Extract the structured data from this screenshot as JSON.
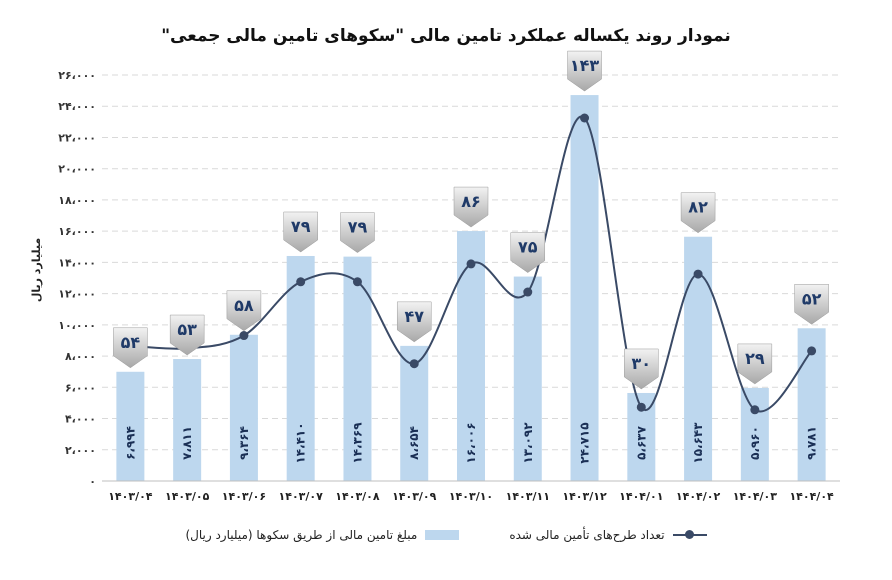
{
  "title": "نمودار روند یکساله عملکرد تامین مالی \"سکوهای تامین مالی جمعی\"",
  "chart_data": {
    "type": "bar+line",
    "categories": [
      "۱۴۰۳/۰۴",
      "۱۴۰۳/۰۵",
      "۱۴۰۳/۰۶",
      "۱۴۰۳/۰۷",
      "۱۴۰۳/۰۸",
      "۱۴۰۳/۰۹",
      "۱۴۰۳/۱۰",
      "۱۴۰۳/۱۱",
      "۱۴۰۳/۱۲",
      "۱۴۰۴/۰۱",
      "۱۴۰۴/۰۲",
      "۱۴۰۴/۰۳",
      "۱۴۰۴/۰۴"
    ],
    "ylabel": "میلیارد ریال",
    "ylim": [
      0,
      26000
    ],
    "yticks": [
      0,
      2000,
      4000,
      6000,
      8000,
      10000,
      12000,
      14000,
      16000,
      18000,
      20000,
      22000,
      24000,
      26000
    ],
    "ytick_labels": [
      "۰",
      "۲،۰۰۰",
      "۴،۰۰۰",
      "۶،۰۰۰",
      "۸،۰۰۰",
      "۱۰،۰۰۰",
      "۱۲،۰۰۰",
      "۱۴،۰۰۰",
      "۱۶،۰۰۰",
      "۱۸،۰۰۰",
      "۲۰،۰۰۰",
      "۲۲،۰۰۰",
      "۲۴،۰۰۰",
      "۲۶،۰۰۰"
    ],
    "grid": true,
    "series": [
      {
        "name": "مبلغ تامین مالی از طریق سکوها (میلیارد ریال)",
        "type": "bar",
        "color": "#bdd7ee",
        "values": [
          6994,
          7811,
          9364,
          14410,
          14369,
          8654,
          16006,
          13092,
          24715,
          5637,
          15643,
          5960,
          9781
        ],
        "value_labels": [
          "۶،۹۹۴",
          "۷،۸۱۱",
          "۹،۳۶۴",
          "۱۴،۴۱۰",
          "۱۴،۳۶۹",
          "۸،۶۵۴",
          "۱۶،۰۰۶",
          "۱۳،۰۹۲",
          "۲۴،۷۱۵",
          "۵،۶۳۷",
          "۱۵،۶۴۳",
          "۵،۹۶۰",
          "۹،۷۸۱"
        ]
      },
      {
        "name": "تعداد طرح‌های تأمین مالی شده",
        "type": "line",
        "color": "#3a4a66",
        "values": [
          54,
          53,
          58,
          79,
          79,
          47,
          86,
          75,
          143,
          30,
          82,
          29,
          52
        ],
        "value_labels": [
          "۵۴",
          "۵۳",
          "۵۸",
          "۷۹",
          "۷۹",
          "۴۷",
          "۸۶",
          "۷۵",
          "۱۴۳",
          "۳۰",
          "۸۲",
          "۲۹",
          "۵۲"
        ]
      }
    ],
    "legend_position": "bottom"
  }
}
